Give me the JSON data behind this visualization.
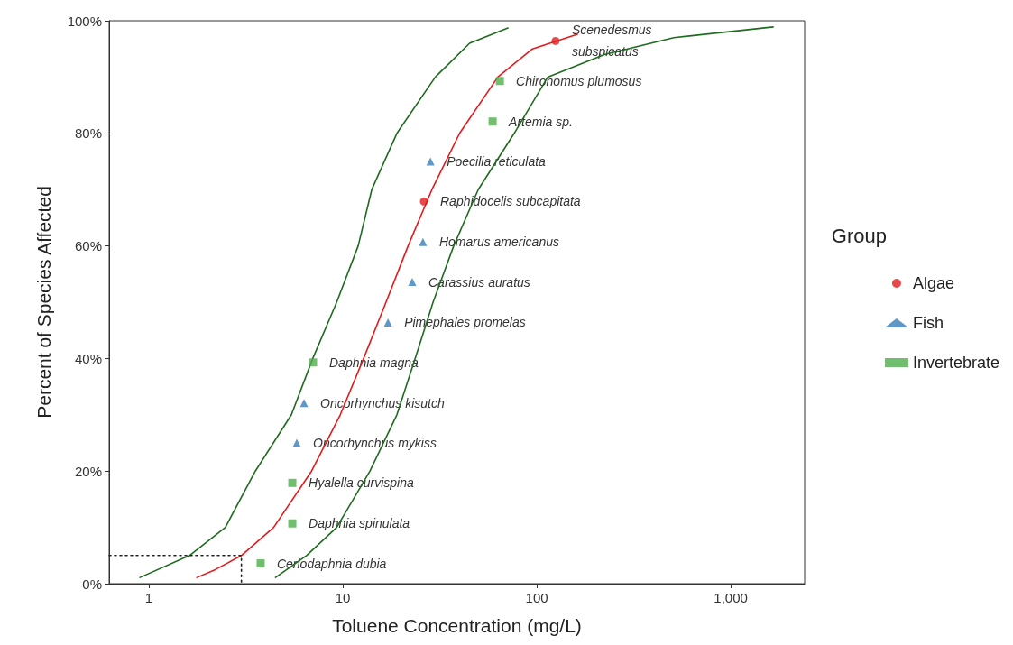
{
  "chart_data": {
    "type": "scatter",
    "xlabel": "Toluene Concentration (mg/L)",
    "ylabel": "Percent of Species Affected",
    "legend_title": "Group",
    "legend": "right",
    "grid": false,
    "log": "x",
    "xlim": [
      0.624,
      2405
    ],
    "xticks": [
      1,
      10,
      100,
      {
        "value": 1000,
        "label": "1,000"
      }
    ],
    "ylim": [
      0,
      100
    ],
    "yticks": [
      {
        "value": 0,
        "label": "0%"
      },
      {
        "value": 20,
        "label": "20%"
      },
      {
        "value": 40,
        "label": "40%"
      },
      {
        "value": 60,
        "label": "60%"
      },
      {
        "value": 80,
        "label": "80%"
      },
      {
        "value": 100,
        "label": "100%"
      }
    ],
    "series": [
      {
        "type": "line",
        "color": "#1f6b1f",
        "line_style": "solid",
        "marker": "none",
        "x": [
          0.9,
          1.62,
          2.48,
          3.54,
          5.43,
          7.0,
          9.3,
          12.0,
          14.1,
          19.0,
          30.0,
          45.0,
          71.0
        ],
        "values": [
          1.1,
          5,
          10,
          20,
          30,
          40,
          50,
          60,
          70,
          80,
          90,
          96,
          98.7
        ]
      },
      {
        "type": "line",
        "color": "#e41a1c",
        "line_style": "solid",
        "marker": "none",
        "x": [
          1.77,
          2.2,
          3.0,
          4.4,
          6.9,
          9.7,
          12.8,
          16.7,
          21.7,
          28.8,
          40.0,
          63.0,
          95.0,
          162.0
        ],
        "values": [
          1.1,
          2.5,
          5,
          10,
          20,
          30,
          40,
          50,
          60,
          70,
          80,
          90,
          95,
          97.6
        ]
      },
      {
        "type": "line",
        "color": "#1f6b1f",
        "line_style": "solid",
        "marker": "none",
        "x": [
          4.5,
          6.5,
          9.3,
          13.8,
          19.0,
          23.6,
          29.2,
          37.3,
          49.9,
          76.5,
          114,
          223,
          509,
          1655
        ],
        "values": [
          1.1,
          5,
          10,
          20,
          30,
          40,
          50,
          60,
          70,
          80,
          90,
          94,
          97,
          98.9
        ]
      },
      {
        "type": "line",
        "color": "#222222",
        "line_style": "dotted",
        "marker": "none",
        "x": [
          0.624,
          3.0,
          3.0
        ],
        "values": [
          5,
          5,
          0
        ]
      },
      {
        "name": "Algae",
        "color": "#e41a1c",
        "marker": "circle",
        "x": [
          26.2,
          125
        ],
        "values": [
          67.9,
          96.4
        ]
      },
      {
        "name": "Fish",
        "color": "#377eb8",
        "marker": "triangle",
        "x": [
          5.79,
          6.31,
          17.1,
          22.8,
          25.9,
          28.3
        ],
        "values": [
          25.0,
          32.1,
          46.4,
          53.6,
          60.7,
          75.0
        ]
      },
      {
        "name": "Invertebrate",
        "color": "#4daf4a",
        "marker": "square",
        "x": [
          3.77,
          5.49,
          5.49,
          7.02,
          59.2,
          64.5
        ],
        "values": [
          3.6,
          10.7,
          17.9,
          39.3,
          82.1,
          89.3
        ]
      }
    ],
    "annotations": [
      {
        "text": "Ceriodaphnia dubia",
        "x": 3.77,
        "y": 3.6
      },
      {
        "text": "Daphnia spinulata",
        "x": 5.49,
        "y": 10.7
      },
      {
        "text": "Hyalella curvispina",
        "x": 5.49,
        "y": 17.9
      },
      {
        "text": "Oncorhynchus mykiss",
        "x": 5.79,
        "y": 25.0
      },
      {
        "text": "Oncorhynchus kisutch",
        "x": 6.31,
        "y": 32.1
      },
      {
        "text": "Daphnia magna",
        "x": 7.02,
        "y": 39.3
      },
      {
        "text": "Pimephales promelas",
        "x": 17.1,
        "y": 46.4
      },
      {
        "text": "Carassius auratus",
        "x": 22.8,
        "y": 53.6
      },
      {
        "text": "Homarus americanus",
        "x": 25.9,
        "y": 60.7
      },
      {
        "text": "Raphidocelis subcapitata",
        "x": 26.2,
        "y": 67.9
      },
      {
        "text": "Poecilia reticulata",
        "x": 28.3,
        "y": 75.0
      },
      {
        "text": "Artemia sp.",
        "x": 59.2,
        "y": 82.1
      },
      {
        "text": "Chironomus plumosus",
        "x": 64.5,
        "y": 89.3
      },
      {
        "text": "Scenedesmus subspicatus",
        "x": 125,
        "y": 96.4
      }
    ]
  }
}
